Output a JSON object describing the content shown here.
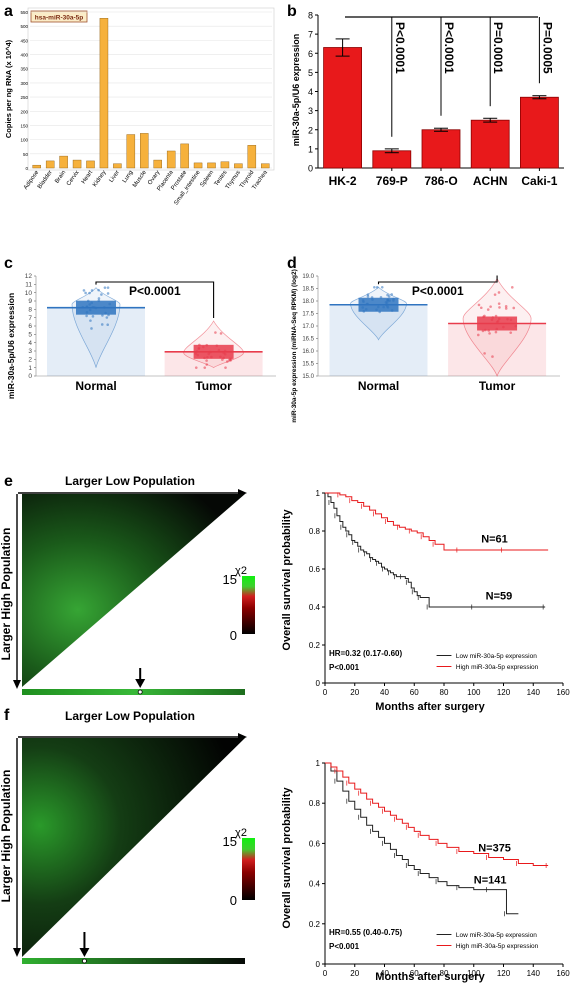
{
  "panels": {
    "a": "a",
    "b": "b",
    "c": "c",
    "d": "d",
    "e": "e",
    "f": "f"
  },
  "chart_data": [
    {
      "id": "a",
      "type": "bar",
      "title": "hsa-miR-30a-5p",
      "ylabel": "Copies per ng RNA (x 10^4)",
      "categories": [
        "Adipose",
        "Bladder",
        "Brain",
        "Cervix",
        "Heart",
        "Kidney",
        "Liver",
        "Lung",
        "Muscle",
        "Ovary",
        "Placenta",
        "Prostate",
        "Small_intestine",
        "Spleen",
        "Testes",
        "Thymus",
        "Thyroid",
        "Trachea"
      ],
      "values": [
        10,
        25,
        42,
        28,
        25,
        528,
        15,
        118,
        122,
        28,
        60,
        85,
        18,
        18,
        22,
        15,
        80,
        15
      ],
      "yticks": [
        "0",
        "50",
        "100",
        "150",
        "200",
        "250",
        "300",
        "350",
        "400",
        "450",
        "500",
        "550"
      ],
      "ylim": [
        0,
        550
      ],
      "bar_color": "#f6b13c"
    },
    {
      "id": "b",
      "type": "bar",
      "ylabel": "miR-30a-5p/U6 expression",
      "categories": [
        "HK-2",
        "769-P",
        "786-O",
        "ACHN",
        "Caki-1"
      ],
      "values": [
        6.3,
        0.9,
        2.0,
        2.5,
        3.7
      ],
      "errors": [
        0.45,
        0.1,
        0.08,
        0.1,
        0.08
      ],
      "yticks": [
        "0",
        "1",
        "2",
        "3",
        "4",
        "5",
        "6",
        "7",
        "8"
      ],
      "ylim": [
        0,
        8
      ],
      "annotations": [
        "P<0.0001",
        "P<0.0001",
        "P=0.0001",
        "P=0.0005"
      ],
      "bar_color": "#e8191b"
    },
    {
      "id": "c",
      "type": "scatter",
      "ylabel": "miR-30a-5p/U6 expression",
      "categories": [
        "Normal",
        "Tumor"
      ],
      "means": [
        8.2,
        2.9
      ],
      "yticks": [
        "0",
        "1",
        "2",
        "3",
        "4",
        "5",
        "6",
        "7",
        "8",
        "9",
        "10",
        "11",
        "12"
      ],
      "ylim": [
        0,
        12
      ],
      "pvalue": "P<0.0001",
      "colors": [
        "#2f74c0",
        "#e83c4c"
      ]
    },
    {
      "id": "d",
      "type": "scatter",
      "ylabel": "miR-30a-5p expression (miRNA-Seq RPKM) (log2)",
      "categories": [
        "Normal",
        "Tumor"
      ],
      "means": [
        17.85,
        17.1
      ],
      "yticks": [
        "15.0",
        "15.5",
        "16.0",
        "16.5",
        "17.0",
        "17.5",
        "18.0",
        "18.5",
        "19.0"
      ],
      "ylim": [
        15.0,
        19.0
      ],
      "pvalue": "P<0.0001",
      "colors": [
        "#2f74c0",
        "#e83c4c"
      ]
    },
    {
      "id": "e",
      "type": "heatmap",
      "xlabel": "Larger Low Population",
      "ylabel": "Larger High Population",
      "legend_label": "χ2",
      "legend_max": "15",
      "legend_min": "0",
      "marker_position": 0.53
    },
    {
      "id": "e-km",
      "type": "line",
      "xlabel": "Months after surgery",
      "ylabel": "Overall survival probability",
      "xticks": [
        "0",
        "20",
        "40",
        "60",
        "80",
        "100",
        "120",
        "140",
        "160"
      ],
      "yticks": [
        "0",
        "0.2",
        "0.4",
        "0.6",
        "0.8",
        "1"
      ],
      "xlim": [
        0,
        160
      ],
      "ylim": [
        0,
        1
      ],
      "hr_text": "HR=0.32 (0.17-0.60)",
      "p_text": "P<0.001",
      "series": [
        {
          "name": "Low miR-30a-5p expression",
          "color": "#222222",
          "label": "N=59",
          "x": [
            0,
            2,
            4,
            6,
            8,
            10,
            12,
            14,
            16,
            18,
            20,
            22,
            24,
            26,
            28,
            30,
            32,
            34,
            36,
            38,
            40,
            42,
            44,
            46,
            48,
            50,
            52,
            54,
            56,
            58,
            60,
            62,
            64,
            66,
            70,
            80,
            100,
            120,
            148
          ],
          "y": [
            1,
            0.98,
            0.95,
            0.92,
            0.88,
            0.85,
            0.82,
            0.8,
            0.78,
            0.75,
            0.74,
            0.72,
            0.7,
            0.69,
            0.68,
            0.66,
            0.65,
            0.64,
            0.63,
            0.61,
            0.6,
            0.59,
            0.58,
            0.57,
            0.56,
            0.56,
            0.56,
            0.55,
            0.53,
            0.5,
            0.48,
            0.46,
            0.45,
            0.45,
            0.4,
            0.4,
            0.4,
            0.4,
            0.4
          ]
        },
        {
          "name": "High miR-30a-5p expression",
          "color": "#e8191b",
          "label": "N=61",
          "x": [
            0,
            6,
            10,
            14,
            18,
            22,
            26,
            30,
            34,
            38,
            42,
            46,
            50,
            54,
            58,
            62,
            66,
            70,
            74,
            80,
            90,
            100,
            120,
            150
          ],
          "y": [
            1,
            1,
            0.99,
            0.98,
            0.96,
            0.95,
            0.93,
            0.91,
            0.89,
            0.87,
            0.85,
            0.83,
            0.82,
            0.81,
            0.8,
            0.79,
            0.77,
            0.75,
            0.73,
            0.7,
            0.7,
            0.7,
            0.7,
            0.7
          ]
        }
      ]
    },
    {
      "id": "f",
      "type": "heatmap",
      "xlabel": "Larger Low Population",
      "ylabel": "Larger High Population",
      "legend_label": "χ2",
      "legend_max": "15",
      "legend_min": "0",
      "marker_position": 0.28
    },
    {
      "id": "f-km",
      "type": "line",
      "xlabel": "Months after surgery",
      "ylabel": "Overall survival probability",
      "xticks": [
        "0",
        "20",
        "40",
        "60",
        "80",
        "100",
        "120",
        "140",
        "160"
      ],
      "yticks": [
        "0",
        "0.2",
        "0.4",
        "0.6",
        "0.8",
        "1"
      ],
      "xlim": [
        0,
        160
      ],
      "ylim": [
        0,
        1
      ],
      "hr_text": "HR=0.55 (0.40-0.75)",
      "p_text": "P<0.001",
      "series": [
        {
          "name": "Low miR-30a-5p expression",
          "color": "#222222",
          "label": "N=141",
          "x": [
            0,
            4,
            8,
            12,
            16,
            20,
            24,
            28,
            32,
            36,
            40,
            44,
            48,
            52,
            56,
            60,
            64,
            70,
            76,
            82,
            90,
            100,
            110,
            120,
            122,
            130
          ],
          "y": [
            1,
            0.96,
            0.91,
            0.86,
            0.81,
            0.77,
            0.73,
            0.69,
            0.66,
            0.63,
            0.6,
            0.57,
            0.54,
            0.52,
            0.49,
            0.47,
            0.45,
            0.43,
            0.41,
            0.39,
            0.38,
            0.37,
            0.37,
            0.37,
            0.25,
            0.25
          ]
        },
        {
          "name": "High miR-30a-5p expression",
          "color": "#e8191b",
          "label": "N=375",
          "x": [
            0,
            4,
            8,
            12,
            16,
            20,
            24,
            28,
            32,
            36,
            40,
            44,
            48,
            52,
            56,
            60,
            64,
            70,
            76,
            82,
            90,
            100,
            110,
            120,
            130,
            140,
            150
          ],
          "y": [
            1,
            0.98,
            0.96,
            0.93,
            0.9,
            0.87,
            0.85,
            0.82,
            0.8,
            0.78,
            0.76,
            0.74,
            0.72,
            0.7,
            0.68,
            0.66,
            0.64,
            0.62,
            0.6,
            0.58,
            0.56,
            0.55,
            0.53,
            0.52,
            0.5,
            0.49,
            0.49
          ]
        }
      ]
    }
  ]
}
